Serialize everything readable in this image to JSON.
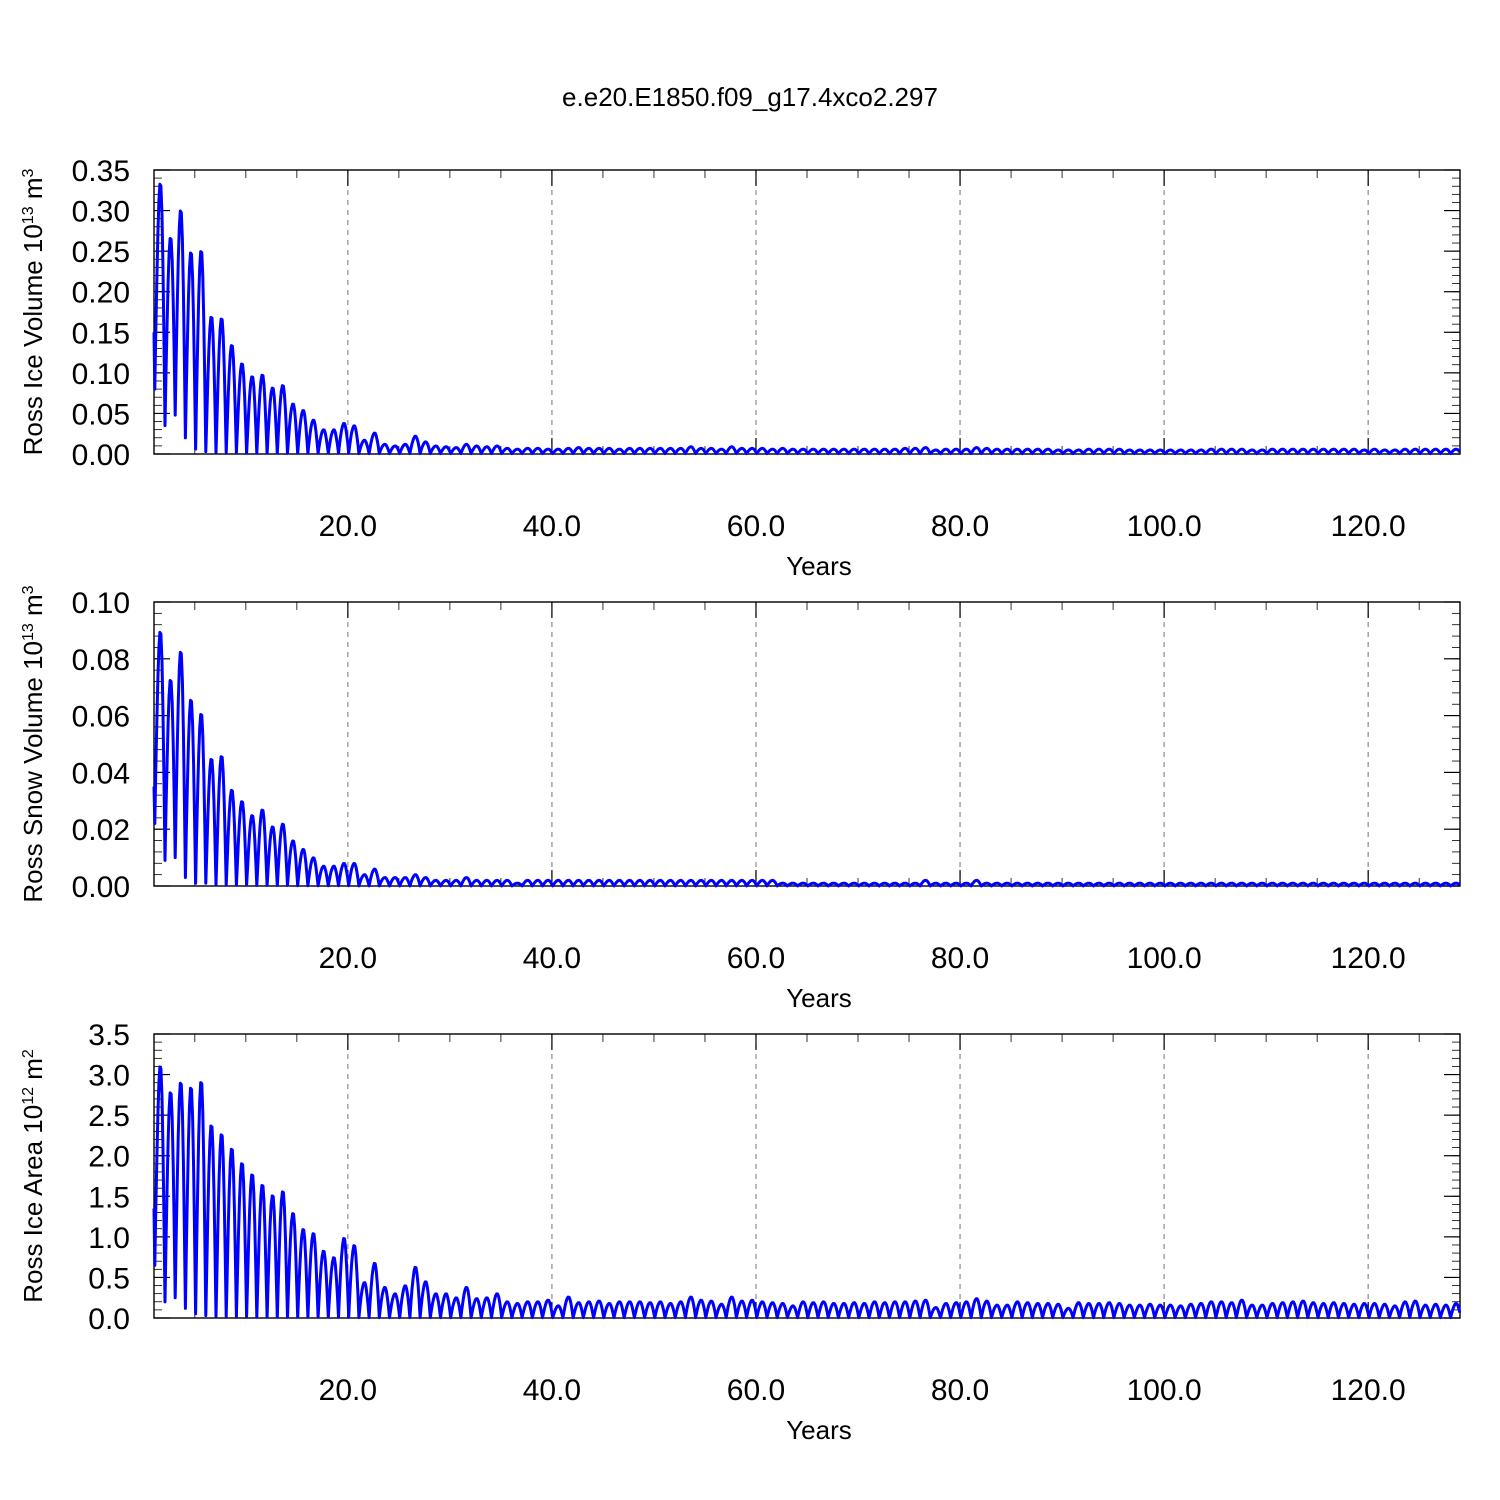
{
  "figure": {
    "title": "e.e20.E1850.f09_g17.4xco2.297"
  },
  "colors": {
    "series": "#0000ff",
    "grid": "#8c8c8c",
    "axis": "#000000"
  },
  "chart_data": [
    {
      "type": "line",
      "ylabel": {
        "prefix": "Ross Ice Volume 10",
        "exp1": "13",
        "mid": " m",
        "exp2": "3"
      },
      "xlabel": "Years",
      "xlim": [
        1,
        129
      ],
      "ylim": [
        0,
        0.35
      ],
      "grid": "vertical dashed at x ticks",
      "xticks": [
        20,
        40,
        60,
        80,
        100,
        120
      ],
      "xtick_labels": [
        "20.0",
        "40.0",
        "60.0",
        "80.0",
        "100.0",
        "120.0"
      ],
      "yticks": [
        0,
        0.05,
        0.1,
        0.15,
        0.2,
        0.25,
        0.3,
        0.35
      ],
      "ytick_labels": [
        "0.00",
        "0.05",
        "0.10",
        "0.15",
        "0.20",
        "0.25",
        "0.30",
        "0.35"
      ],
      "series_start": {
        "x": 1.0,
        "y": 0.15
      },
      "annual_peaks": [
        0.335,
        0.268,
        0.302,
        0.25,
        0.252,
        0.17,
        0.168,
        0.135,
        0.112,
        0.096,
        0.098,
        0.082,
        0.085,
        0.062,
        0.054,
        0.042,
        0.03,
        0.03,
        0.038,
        0.035,
        0.017,
        0.026,
        0.012,
        0.01,
        0.012,
        0.022,
        0.015,
        0.01,
        0.009,
        0.008,
        0.012,
        0.01,
        0.009,
        0.01,
        0.007,
        0.006,
        0.007,
        0.007,
        0.006,
        0.006,
        0.007,
        0.008,
        0.007,
        0.007,
        0.007,
        0.006,
        0.007,
        0.007,
        0.007,
        0.007,
        0.007,
        0.007,
        0.009,
        0.007,
        0.007,
        0.006,
        0.009,
        0.007,
        0.007,
        0.007,
        0.006,
        0.007,
        0.006,
        0.006,
        0.006,
        0.006,
        0.006,
        0.006,
        0.006,
        0.006,
        0.006,
        0.006,
        0.006,
        0.007,
        0.007,
        0.008,
        0.005,
        0.006,
        0.006,
        0.006,
        0.008,
        0.007,
        0.006,
        0.006,
        0.006,
        0.006,
        0.006,
        0.006,
        0.005,
        0.005,
        0.005,
        0.006,
        0.006,
        0.006,
        0.006,
        0.005,
        0.005,
        0.005,
        0.005,
        0.005,
        0.005,
        0.005,
        0.005,
        0.006,
        0.006,
        0.006,
        0.006,
        0.005,
        0.005,
        0.006,
        0.006,
        0.006,
        0.006,
        0.006,
        0.006,
        0.006,
        0.006,
        0.006,
        0.005,
        0.006,
        0.005,
        0.005,
        0.006,
        0.006,
        0.006,
        0.006,
        0.006,
        0.006
      ],
      "annual_minima": [
        0.08,
        0.035,
        0.048,
        0.02,
        0.006,
        0.003,
        0.002,
        0.002,
        0.002,
        0.001,
        0.001,
        0.001,
        0.001,
        0.001,
        0.001,
        0.001,
        0.001,
        0.001,
        0.001,
        0.001
      ]
    },
    {
      "type": "line",
      "ylabel": {
        "prefix": "Ross Snow Volume 10",
        "exp1": "13",
        "mid": " m",
        "exp2": "3"
      },
      "xlabel": "Years",
      "xlim": [
        1,
        129
      ],
      "ylim": [
        0,
        0.1
      ],
      "grid": "vertical dashed at x ticks",
      "xticks": [
        20,
        40,
        60,
        80,
        100,
        120
      ],
      "xtick_labels": [
        "20.0",
        "40.0",
        "60.0",
        "80.0",
        "100.0",
        "120.0"
      ],
      "yticks": [
        0,
        0.02,
        0.04,
        0.06,
        0.08,
        0.1
      ],
      "ytick_labels": [
        "0.00",
        "0.02",
        "0.04",
        "0.06",
        "0.08",
        "0.10"
      ],
      "series_start": {
        "x": 1.0,
        "y": 0.035
      },
      "annual_peaks": [
        0.09,
        0.073,
        0.083,
        0.066,
        0.061,
        0.045,
        0.046,
        0.034,
        0.03,
        0.025,
        0.027,
        0.021,
        0.022,
        0.016,
        0.013,
        0.01,
        0.007,
        0.007,
        0.008,
        0.008,
        0.004,
        0.006,
        0.003,
        0.003,
        0.003,
        0.004,
        0.003,
        0.002,
        0.002,
        0.002,
        0.003,
        0.002,
        0.002,
        0.002,
        0.002,
        0.001,
        0.002,
        0.002,
        0.002,
        0.002,
        0.002,
        0.002,
        0.002,
        0.002,
        0.002,
        0.002,
        0.002,
        0.002,
        0.002,
        0.002,
        0.002,
        0.002,
        0.002,
        0.002,
        0.002,
        0.002,
        0.002,
        0.002,
        0.002,
        0.002,
        0.002,
        0.001,
        0.001,
        0.001,
        0.001,
        0.001,
        0.001,
        0.001,
        0.001,
        0.001,
        0.001,
        0.001,
        0.001,
        0.001,
        0.001,
        0.002,
        0.001,
        0.001,
        0.001,
        0.001,
        0.002,
        0.001,
        0.001,
        0.001,
        0.001,
        0.001,
        0.001,
        0.001,
        0.001,
        0.001,
        0.001,
        0.001,
        0.001,
        0.001,
        0.001,
        0.001,
        0.001,
        0.001,
        0.001,
        0.001,
        0.001,
        0.001,
        0.001,
        0.001,
        0.001,
        0.001,
        0.001,
        0.001,
        0.001,
        0.001,
        0.001,
        0.001,
        0.001,
        0.001,
        0.001,
        0.001,
        0.001,
        0.001,
        0.001,
        0.001,
        0.001,
        0.001,
        0.001,
        0.001,
        0.001,
        0.001,
        0.001,
        0.001
      ],
      "annual_minima": [
        0.022,
        0.009,
        0.01,
        0.003,
        0.001,
        0.001,
        0.0005,
        0.0005,
        0.0003,
        0.0003,
        0.0002,
        0.0002,
        0.0002,
        0.0002,
        0.0001,
        0.0001,
        0.0001,
        0.0001,
        0.0001,
        0.0001
      ]
    },
    {
      "type": "line",
      "ylabel": {
        "prefix": "Ross Ice Area 10",
        "exp1": "12",
        "mid": " m",
        "exp2": "2"
      },
      "xlabel": "Years",
      "xlim": [
        1,
        129
      ],
      "ylim": [
        0,
        3.5
      ],
      "grid": "vertical dashed at x ticks",
      "xticks": [
        20,
        40,
        60,
        80,
        100,
        120
      ],
      "xtick_labels": [
        "20.0",
        "40.0",
        "60.0",
        "80.0",
        "100.0",
        "120.0"
      ],
      "yticks": [
        0,
        0.5,
        1.0,
        1.5,
        2.0,
        2.5,
        3.0,
        3.5
      ],
      "ytick_labels": [
        "0.0",
        "0.5",
        "1.0",
        "1.5",
        "2.0",
        "2.5",
        "3.0",
        "3.5"
      ],
      "series_start": {
        "x": 1.0,
        "y": 1.35
      },
      "annual_peaks": [
        3.12,
        2.8,
        2.92,
        2.86,
        2.93,
        2.39,
        2.28,
        2.1,
        1.92,
        1.78,
        1.65,
        1.52,
        1.57,
        1.3,
        1.1,
        1.05,
        0.83,
        0.75,
        0.99,
        0.9,
        0.44,
        0.68,
        0.38,
        0.3,
        0.4,
        0.63,
        0.45,
        0.3,
        0.3,
        0.25,
        0.38,
        0.24,
        0.25,
        0.3,
        0.2,
        0.18,
        0.2,
        0.2,
        0.22,
        0.15,
        0.26,
        0.19,
        0.2,
        0.21,
        0.18,
        0.2,
        0.2,
        0.2,
        0.19,
        0.2,
        0.18,
        0.2,
        0.26,
        0.22,
        0.21,
        0.17,
        0.26,
        0.21,
        0.22,
        0.2,
        0.19,
        0.18,
        0.15,
        0.2,
        0.19,
        0.2,
        0.18,
        0.18,
        0.19,
        0.18,
        0.2,
        0.19,
        0.2,
        0.2,
        0.21,
        0.22,
        0.13,
        0.18,
        0.19,
        0.2,
        0.24,
        0.21,
        0.16,
        0.16,
        0.2,
        0.19,
        0.18,
        0.18,
        0.17,
        0.12,
        0.19,
        0.18,
        0.18,
        0.19,
        0.18,
        0.16,
        0.16,
        0.17,
        0.16,
        0.16,
        0.15,
        0.17,
        0.18,
        0.2,
        0.2,
        0.19,
        0.22,
        0.16,
        0.16,
        0.18,
        0.19,
        0.2,
        0.21,
        0.19,
        0.18,
        0.19,
        0.18,
        0.17,
        0.18,
        0.18,
        0.17,
        0.15,
        0.2,
        0.21,
        0.16,
        0.17,
        0.16,
        0.18
      ],
      "annual_minima": [
        0.65,
        0.2,
        0.25,
        0.12,
        0.05,
        0.03,
        0.02,
        0.02,
        0.02,
        0.02,
        0.01,
        0.01,
        0.01,
        0.01,
        0.01,
        0.01,
        0.01,
        0.01,
        0.01,
        0.01
      ]
    }
  ]
}
